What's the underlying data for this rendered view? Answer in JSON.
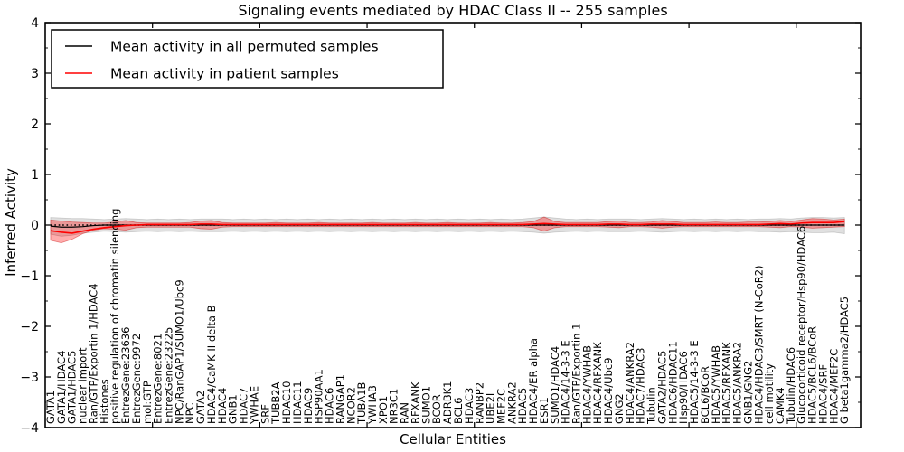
{
  "chart_data": {
    "type": "line",
    "title": "Signaling events mediated by HDAC Class II -- 255 samples",
    "xlabel": "Cellular Entities",
    "ylabel": "Inferred Activity",
    "ylim": [
      -4,
      4
    ],
    "xlim_units": 76,
    "grid": false,
    "legend_position": "upper left",
    "ytick_values": [
      4,
      3,
      2,
      1,
      0,
      -1,
      -2,
      -3,
      -4
    ],
    "ytick_labels": [
      "4",
      "3",
      "2",
      "1",
      "0",
      "−1",
      "−2",
      "−3",
      "−4"
    ],
    "ytick_minor_step": 0.5,
    "xtick_values": [
      10,
      20,
      30,
      40,
      50,
      60,
      70
    ],
    "categories": [
      "GATA1",
      "GATA1/HDAC4",
      "GATA1/HDAC5",
      "nuclear import",
      "Ran/GTP/Exportin 1/HDAC4",
      "Histones",
      "positive regulation of chromatin silencing",
      "EntrezGene:23636",
      "EntrezGene:9972",
      "mol:GTP",
      "EntrezGene:8021",
      "EntrezGene:23225",
      "NPC/RanGAP1/SUMO1/Ubc9",
      "NPC",
      "GATA2",
      "HDAC4/CaMK II delta B",
      "HDAC4",
      "GNB1",
      "HDAC7",
      "YWHAE",
      "SRF",
      "TUBB2A",
      "HDAC10",
      "HDAC11",
      "HDAC9",
      "HSP90AA1",
      "HDAC6",
      "RANGAP1",
      "NCOR2",
      "TUBA1B",
      "YWHAB",
      "XPO1",
      "NR3C1",
      "RAN",
      "RFXANK",
      "SUMO1",
      "BCOR",
      "ADRBK1",
      "BCL6",
      "HDAC3",
      "RANBP2",
      "UBE2I",
      "MEF2C",
      "ANKRA2",
      "HDAC5",
      "HDAC4/ER alpha",
      "ESR1",
      "SUMO1/HDAC4",
      "HDAC4/14-3-3 E",
      "Ran/GTP/Exportin 1",
      "HDAC4/YWHAB",
      "HDAC4/RFXANK",
      "HDAC4/Ubc9",
      "GNG2",
      "HDAC4/ANKRA2",
      "HDAC7/HDAC3",
      "Tubulin",
      "GATA2/HDAC5",
      "HDAC6/HDAC11",
      "Hsp90/HDAC6",
      "HDAC5/14-3-3 E",
      "BCL6/BCoR",
      "HDAC5/YWHAB",
      "HDAC5/RFXANK",
      "HDAC5/ANKRA2",
      "GNB1/GNG2",
      "HDAC4/HDAC3/SMRT (N-CoR2)",
      "cell motility",
      "CAMK4",
      "Tubulin/HDAC6",
      "Glucocorticoid receptor/Hsp90/HDAC6",
      "HDAC5/BCL6/BCoR",
      "HDAC4/SRF",
      "HDAC4/MEF2C",
      "G beta1gamma2/HDAC5"
    ],
    "series": [
      {
        "name": "Mean activity in all permuted samples",
        "color": "#000000",
        "style": "solid",
        "values": [
          -0.02,
          -0.04,
          -0.04,
          -0.03,
          -0.01,
          0,
          0,
          0,
          0,
          0,
          0,
          0,
          0,
          0,
          0,
          0,
          0,
          0,
          0,
          0,
          0,
          0,
          0,
          0,
          0,
          0,
          0,
          0,
          0,
          0,
          0,
          0,
          0,
          0,
          0,
          0,
          0,
          0,
          0,
          0,
          0,
          0,
          0,
          0,
          0,
          0,
          0,
          0,
          0,
          0,
          0,
          0,
          0,
          0,
          0,
          0,
          0,
          0,
          0,
          0,
          0,
          0,
          0,
          0,
          0,
          0,
          0,
          0,
          0,
          0,
          0,
          0,
          0,
          0,
          0
        ]
      },
      {
        "name": "Mean activity in patient samples",
        "color": "#ff0000",
        "style": "solid",
        "values": [
          -0.11,
          -0.14,
          -0.16,
          -0.12,
          -0.08,
          -0.05,
          -0.03,
          -0.01,
          0.0,
          0.01,
          0.01,
          0.01,
          0.01,
          0.01,
          0.02,
          0.02,
          0.01,
          0.01,
          0.01,
          0.01,
          0.01,
          0.01,
          0.01,
          0.01,
          0.01,
          0.01,
          0.01,
          0.01,
          0.01,
          0.01,
          0.01,
          0.01,
          0.01,
          0.01,
          0.01,
          0.01,
          0.01,
          0.01,
          0.01,
          0.01,
          0.01,
          0.01,
          0.01,
          0.01,
          0.01,
          0.02,
          0.03,
          0.02,
          0.01,
          0.01,
          0.01,
          0.01,
          0.02,
          0.02,
          0.01,
          0.01,
          0.02,
          0.02,
          0.02,
          0.01,
          0.01,
          0.01,
          0.01,
          0.01,
          0.01,
          0.01,
          0.01,
          0.02,
          0.03,
          0.02,
          0.04,
          0.05,
          0.05,
          0.05,
          0.07
        ]
      }
    ],
    "reference_line": {
      "y": 0,
      "style": "dotted",
      "color": "#000000"
    },
    "bands": [
      {
        "name": "permuted-range-band",
        "color": "#bbbbbb",
        "opacity": 0.45,
        "edge": "rgba(120,120,120,0.35)",
        "upper": [
          0.15,
          0.14,
          0.13,
          0.13,
          0.12,
          0.11,
          0.12,
          0.13,
          0.12,
          0.11,
          0.12,
          0.11,
          0.12,
          0.11,
          0.12,
          0.12,
          0.12,
          0.11,
          0.12,
          0.11,
          0.12,
          0.11,
          0.12,
          0.11,
          0.12,
          0.11,
          0.12,
          0.11,
          0.12,
          0.11,
          0.12,
          0.11,
          0.12,
          0.11,
          0.12,
          0.11,
          0.12,
          0.11,
          0.12,
          0.11,
          0.12,
          0.11,
          0.12,
          0.11,
          0.12,
          0.14,
          0.16,
          0.14,
          0.12,
          0.11,
          0.12,
          0.11,
          0.12,
          0.12,
          0.12,
          0.11,
          0.12,
          0.13,
          0.12,
          0.11,
          0.12,
          0.11,
          0.12,
          0.11,
          0.12,
          0.11,
          0.12,
          0.12,
          0.13,
          0.12,
          0.14,
          0.15,
          0.15,
          0.14,
          0.15
        ],
        "lower": [
          -0.18,
          -0.22,
          -0.2,
          -0.16,
          -0.14,
          -0.12,
          -0.13,
          -0.14,
          -0.13,
          -0.12,
          -0.13,
          -0.12,
          -0.13,
          -0.12,
          -0.13,
          -0.13,
          -0.13,
          -0.12,
          -0.13,
          -0.12,
          -0.13,
          -0.12,
          -0.13,
          -0.12,
          -0.13,
          -0.12,
          -0.13,
          -0.12,
          -0.13,
          -0.12,
          -0.13,
          -0.12,
          -0.13,
          -0.12,
          -0.13,
          -0.12,
          -0.13,
          -0.12,
          -0.13,
          -0.12,
          -0.13,
          -0.12,
          -0.13,
          -0.12,
          -0.13,
          -0.14,
          -0.16,
          -0.14,
          -0.13,
          -0.12,
          -0.13,
          -0.12,
          -0.13,
          -0.13,
          -0.13,
          -0.12,
          -0.13,
          -0.14,
          -0.13,
          -0.12,
          -0.13,
          -0.12,
          -0.13,
          -0.12,
          -0.13,
          -0.12,
          -0.13,
          -0.13,
          -0.14,
          -0.13,
          -0.14,
          -0.15,
          -0.15,
          -0.14,
          -0.17
        ]
      },
      {
        "name": "patient-range-band",
        "color": "#ff0000",
        "opacity": 0.32,
        "edge": "rgba(200,0,0,0.45)",
        "upper": [
          0.1,
          0.08,
          0.06,
          0.05,
          0.04,
          0.04,
          0.06,
          0.09,
          0.05,
          0.04,
          0.04,
          0.04,
          0.04,
          0.05,
          0.08,
          0.09,
          0.05,
          0.04,
          0.04,
          0.04,
          0.04,
          0.05,
          0.04,
          0.04,
          0.04,
          0.05,
          0.04,
          0.04,
          0.04,
          0.04,
          0.05,
          0.04,
          0.04,
          0.04,
          0.05,
          0.04,
          0.04,
          0.05,
          0.04,
          0.04,
          0.04,
          0.05,
          0.04,
          0.04,
          0.05,
          0.07,
          0.16,
          0.07,
          0.05,
          0.05,
          0.05,
          0.05,
          0.07,
          0.08,
          0.05,
          0.05,
          0.06,
          0.09,
          0.07,
          0.05,
          0.05,
          0.05,
          0.06,
          0.05,
          0.05,
          0.06,
          0.06,
          0.07,
          0.09,
          0.07,
          0.1,
          0.13,
          0.12,
          0.1,
          0.12
        ],
        "lower": [
          -0.3,
          -0.35,
          -0.28,
          -0.17,
          -0.1,
          -0.07,
          -0.08,
          -0.1,
          -0.05,
          -0.04,
          -0.04,
          -0.04,
          -0.04,
          -0.04,
          -0.07,
          -0.08,
          -0.04,
          -0.03,
          -0.03,
          -0.03,
          -0.03,
          -0.03,
          -0.03,
          -0.03,
          -0.03,
          -0.03,
          -0.03,
          -0.03,
          -0.03,
          -0.03,
          -0.03,
          -0.03,
          -0.03,
          -0.03,
          -0.03,
          -0.03,
          -0.03,
          -0.03,
          -0.03,
          -0.03,
          -0.03,
          -0.03,
          -0.03,
          -0.03,
          -0.03,
          -0.05,
          -0.12,
          -0.05,
          -0.03,
          -0.03,
          -0.03,
          -0.03,
          -0.04,
          -0.05,
          -0.03,
          -0.03,
          -0.04,
          -0.06,
          -0.04,
          -0.03,
          -0.03,
          -0.03,
          -0.03,
          -0.03,
          -0.03,
          -0.03,
          -0.03,
          -0.04,
          -0.05,
          -0.03,
          -0.04,
          -0.06,
          -0.05,
          -0.04,
          -0.03
        ]
      }
    ]
  }
}
